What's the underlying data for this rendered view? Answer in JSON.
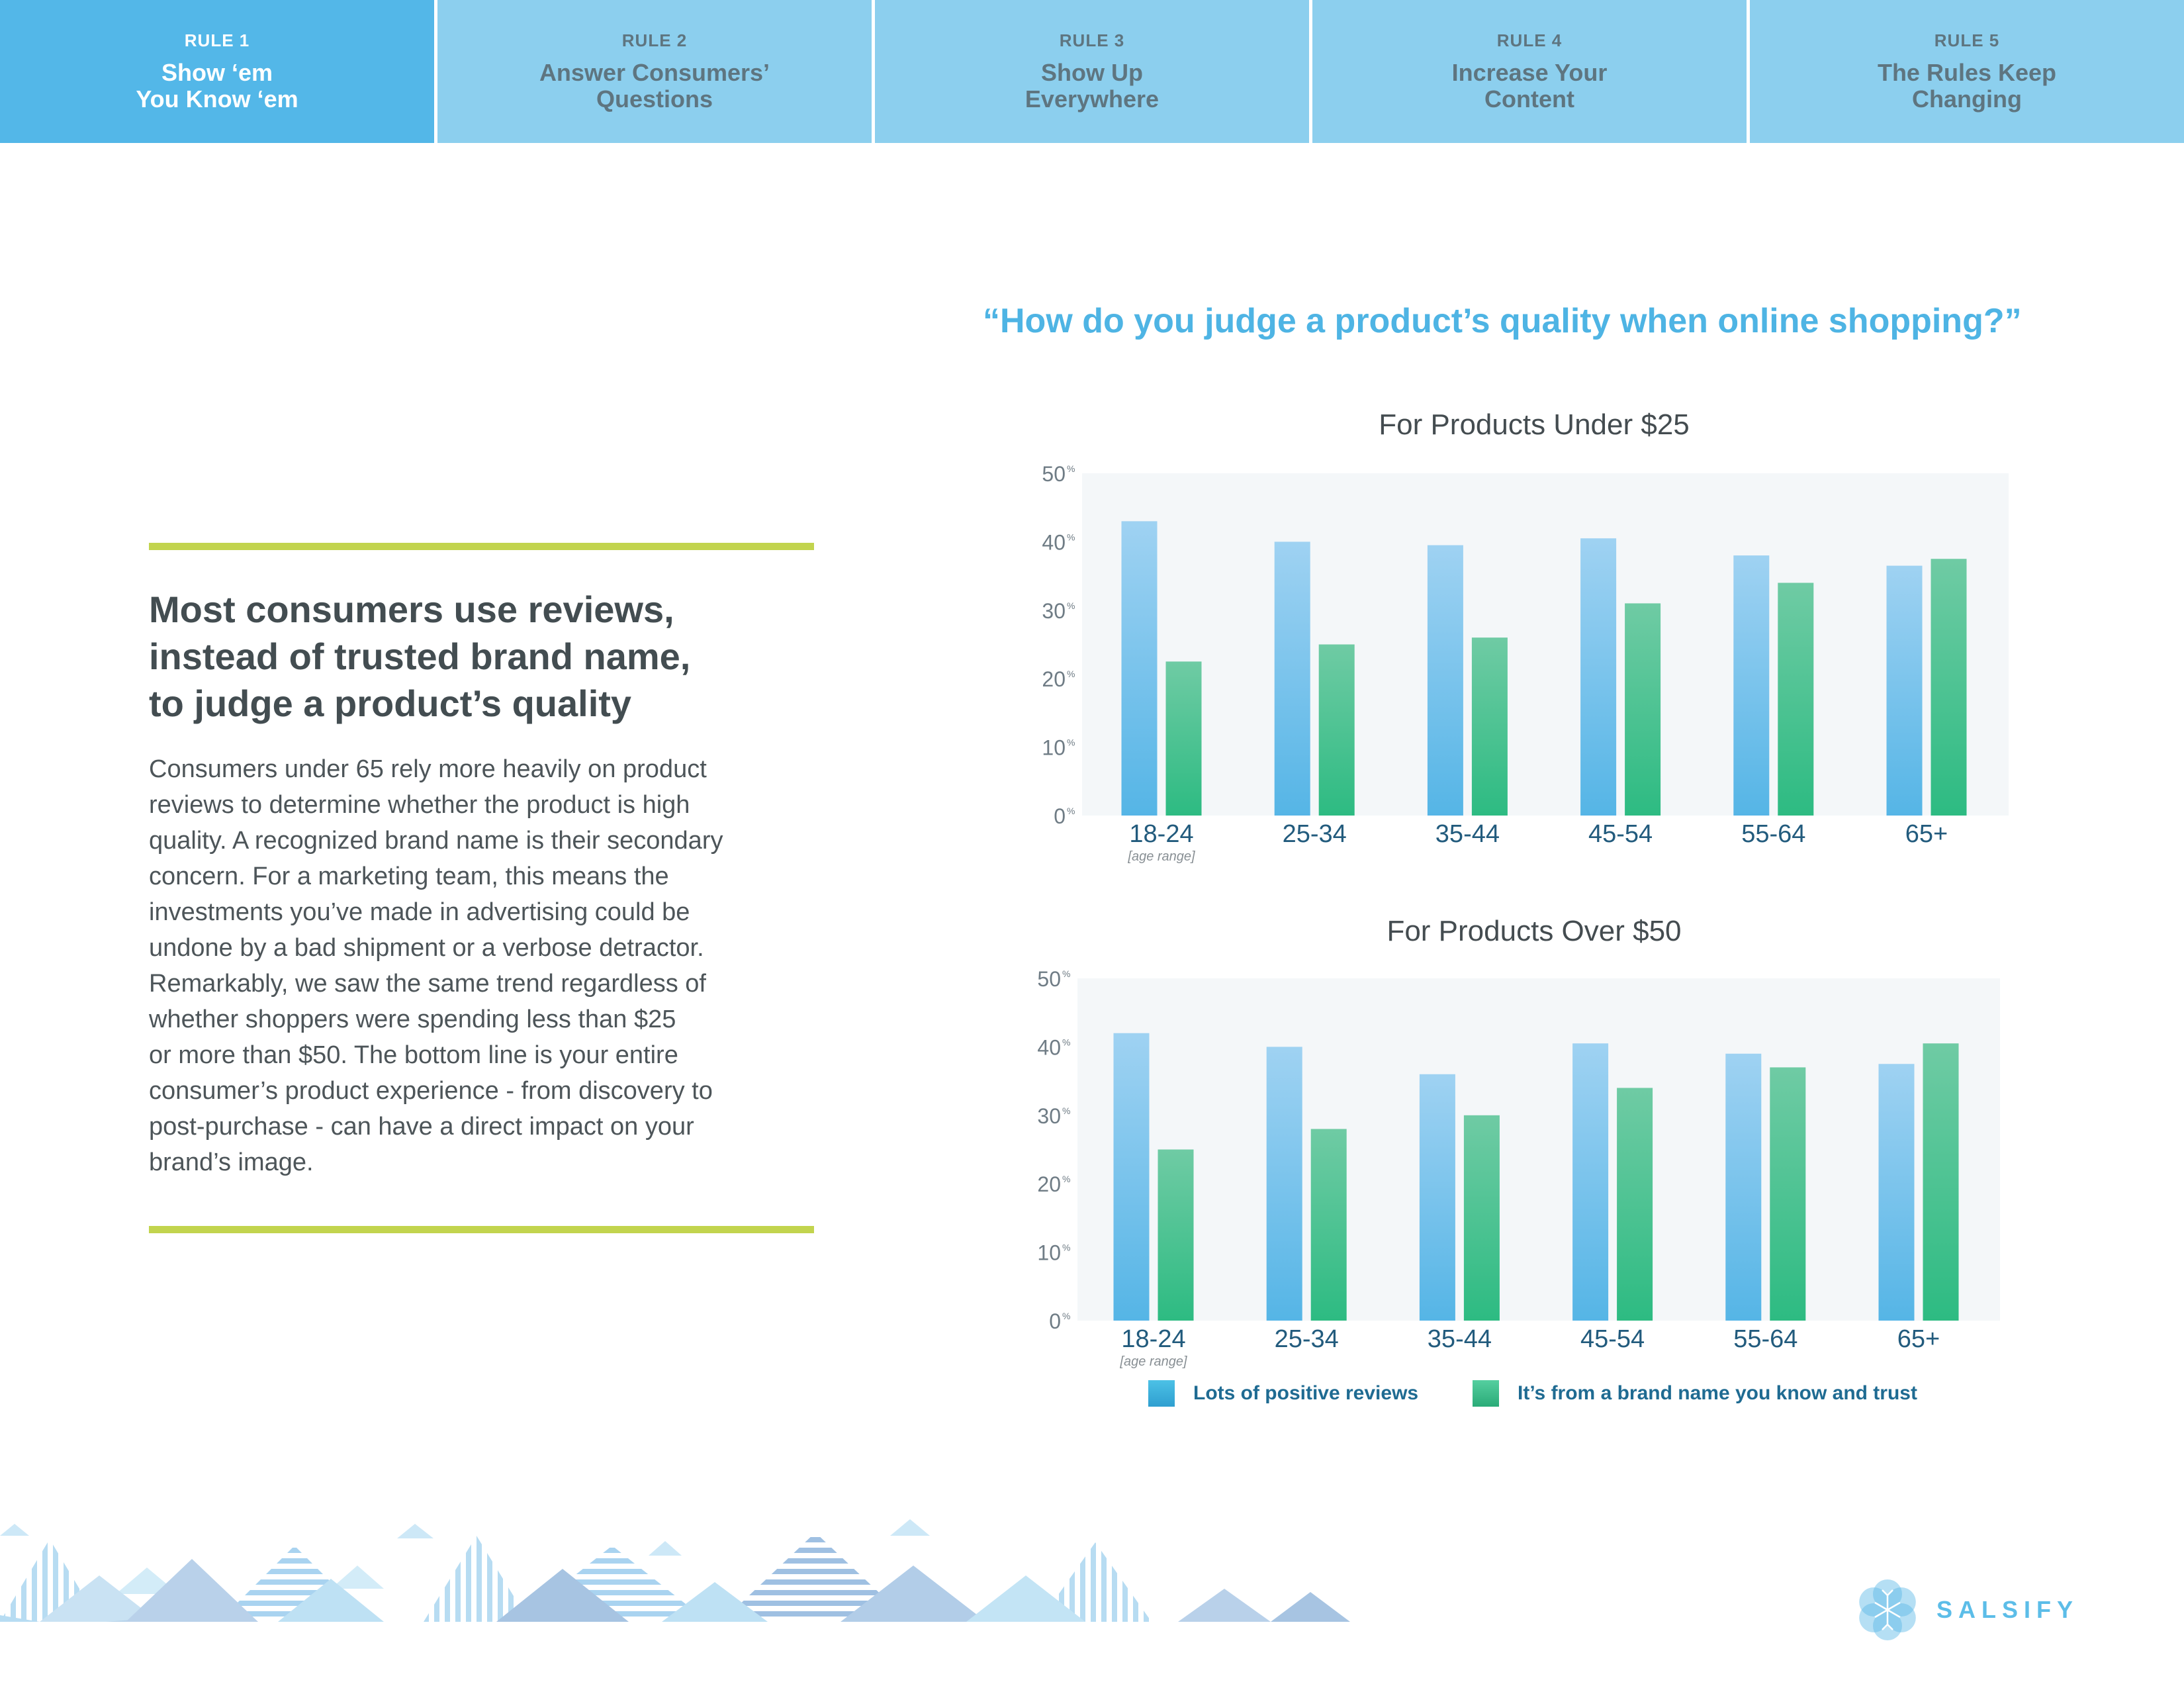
{
  "tabs": [
    {
      "num": "RULE 1",
      "title": "Show ‘em\nYou Know ‘em",
      "active": true
    },
    {
      "num": "RULE 2",
      "title": "Answer Consumers’\nQuestions",
      "active": false
    },
    {
      "num": "RULE 3",
      "title": "Show Up\nEverywhere",
      "active": false
    },
    {
      "num": "RULE 4",
      "title": "Increase Your\nContent",
      "active": false
    },
    {
      "num": "RULE 5",
      "title": "The Rules Keep\nChanging",
      "active": false
    }
  ],
  "headline": "Most consumers use reviews,\ninstead of trusted brand name,\nto judge a product’s quality",
  "body": "Consumers under 65 rely more heavily on product\nreviews to determine whether the product is high\nquality. A recognized brand name is their secondary\nconcern. For a marketing team, this means the\ninvestments you’ve made in advertising could be\nundone by a bad shipment or a verbose detractor.\nRemarkably, we saw the same trend regardless of\nwhether shoppers were spending less than $25\nor more than $50. The bottom line is your entire\nconsumer’s product experience - from discovery to\npost-purchase - can have a direct impact on your\nbrand’s image.",
  "question": "“How do you judge a product’s quality when online shopping?”",
  "colors": {
    "reviews": "#59b6e6",
    "brand": "#2fbc85",
    "plot_bg": "#f4f7f9",
    "accent": "#c2d44e"
  },
  "chart_data": [
    {
      "type": "bar",
      "title": "For Products Under $25",
      "categories": [
        "18-24",
        "25-34",
        "35-44",
        "45-54",
        "55-64",
        "65+"
      ],
      "category_note": "[age range]",
      "yticks": [
        0,
        10,
        20,
        30,
        40,
        50
      ],
      "ytick_suffix": "%",
      "ylim": [
        0,
        50
      ],
      "series": [
        {
          "name": "Lots of positive reviews",
          "values": [
            43,
            40,
            39.5,
            40.5,
            38,
            36.5
          ]
        },
        {
          "name": "It’s from a brand name you know and trust",
          "values": [
            22.5,
            25,
            26,
            31,
            34,
            37.5
          ]
        }
      ]
    },
    {
      "type": "bar",
      "title": "For Products Over $50",
      "categories": [
        "18-24",
        "25-34",
        "35-44",
        "45-54",
        "55-64",
        "65+"
      ],
      "category_note": "[age range]",
      "yticks": [
        0,
        10,
        20,
        30,
        40,
        50
      ],
      "ytick_suffix": "%",
      "ylim": [
        0,
        50
      ],
      "series": [
        {
          "name": "Lots of positive reviews",
          "values": [
            42,
            40,
            36,
            40.5,
            39,
            37.5
          ]
        },
        {
          "name": "It’s from a brand name you know and trust",
          "values": [
            25,
            28,
            30,
            34,
            37,
            40.5
          ]
        }
      ]
    }
  ],
  "legend": [
    {
      "label": "Lots of positive reviews"
    },
    {
      "label": "It’s from a brand name you know and trust"
    }
  ],
  "logo": {
    "text": "SALSIFY",
    "icon": "flower-icon"
  }
}
